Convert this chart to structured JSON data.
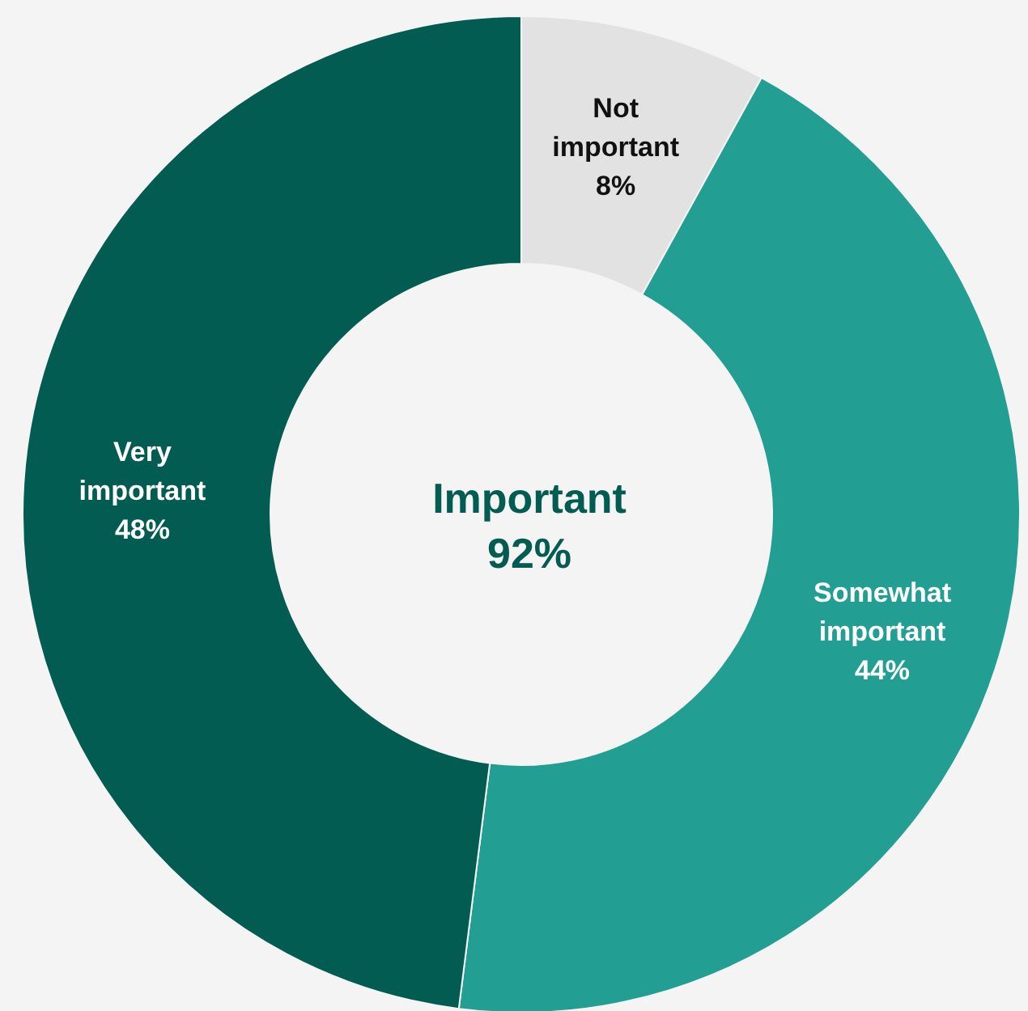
{
  "chart_data": {
    "type": "donut",
    "categories": [
      "Not important",
      "Somewhat important",
      "Very important"
    ],
    "values": [
      8,
      44,
      48
    ],
    "colors": [
      "#e2e2e2",
      "#229e93",
      "#035c52"
    ],
    "value_labels": [
      "8%",
      "44%",
      "48%"
    ],
    "legend": false,
    "annotations": [
      "Important 92%"
    ]
  }
}
